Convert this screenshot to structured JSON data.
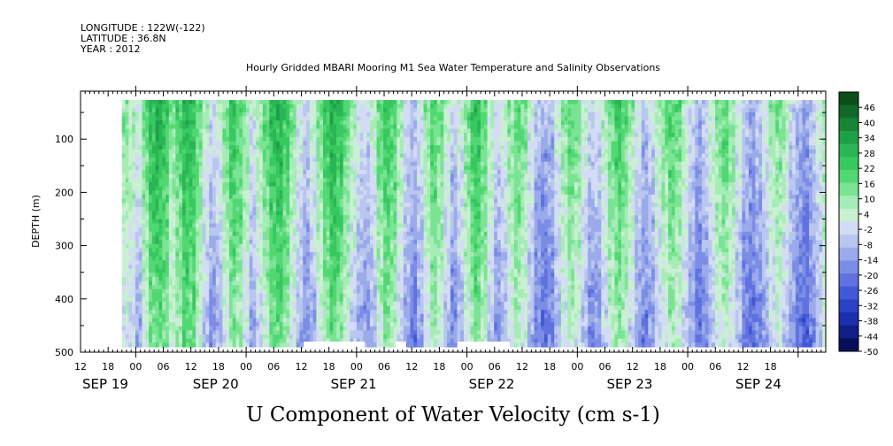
{
  "header": {
    "longitude": "LONGITUDE : 122W(-122)",
    "latitude": "LATITUDE : 36.8N",
    "year": "YEAR : 2012"
  },
  "chart_data": {
    "type": "heatmap",
    "title": "Hourly Gridded MBARI Mooring M1 Sea Water Temperature and Salinity Observations",
    "xlabel": "",
    "ylabel": "DEPTH (m)",
    "bottom_title": "U Component of Water Velocity (cm s-1)",
    "x_range_hours": [
      0,
      162
    ],
    "x_time_origin": "SEP 19 12",
    "data_start_hour": 9,
    "ylim": [
      500,
      10
    ],
    "y_ticks": [
      100,
      200,
      300,
      400,
      500
    ],
    "x_hour_ticks": [
      "12",
      "18",
      "00",
      "06",
      "12",
      "18",
      "00",
      "06",
      "12",
      "18",
      "00",
      "06",
      "12",
      "18",
      "00",
      "06",
      "12",
      "18",
      "00",
      "06",
      "12",
      "18",
      "00",
      "06",
      "12",
      "18"
    ],
    "date_labels": [
      {
        "label": "SEP 19",
        "hour": 0
      },
      {
        "label": "SEP 20",
        "hour": 24
      },
      {
        "label": "SEP 21",
        "hour": 54
      },
      {
        "label": "SEP 22",
        "hour": 84
      },
      {
        "label": "SEP 23",
        "hour": 114
      },
      {
        "label": "SEP 24",
        "hour": 142
      }
    ],
    "colorbar": {
      "labels": [
        "46",
        "40",
        "34",
        "28",
        "22",
        "16",
        "10",
        "4",
        "-2",
        "-8",
        "-14",
        "-20",
        "-26",
        "-32",
        "-38",
        "-44",
        "-50"
      ],
      "colors": [
        "#0d4d1a",
        "#10692a",
        "#168535",
        "#1ea146",
        "#2bb555",
        "#38c860",
        "#52d873",
        "#7be394",
        "#a6ecb6",
        "#c9f0d2",
        "#d3dcf4",
        "#b9c6ef",
        "#9aaaea",
        "#7c8de6",
        "#5f72df",
        "#4258d6",
        "#2c41c6",
        "#1c2fac",
        "#101e86",
        "#070f5a"
      ],
      "min": -50,
      "max": 52
    },
    "column_profile": [
      0.2,
      0.1,
      -0.2,
      0.4,
      0.9,
      1.0,
      0.8,
      0.3,
      0.6,
      1.0,
      0.9,
      0.4,
      -0.1,
      -0.4,
      -0.2,
      0.3,
      0.8,
      0.6,
      0.2,
      -0.3,
      0.1,
      0.5,
      0.9,
      1.0,
      0.7,
      0.2,
      -0.2,
      -0.5,
      -0.2,
      0.3,
      0.7,
      1.0,
      0.8,
      0.4,
      0.0,
      -0.3,
      -0.4,
      -0.1,
      0.4,
      0.8,
      0.6,
      0.1,
      -0.4,
      -0.6,
      -0.3,
      0.2,
      0.6,
      0.4,
      -0.1,
      -0.5,
      -0.2,
      0.3,
      0.7,
      0.9,
      0.5,
      0.0,
      -0.4,
      -0.2,
      0.2,
      0.5,
      0.3,
      -0.2,
      -0.6,
      -0.8,
      -0.6,
      -0.2,
      0.2,
      0.5,
      0.3,
      -0.1,
      -0.5,
      -0.4,
      0.0,
      0.4,
      0.7,
      0.5,
      0.1,
      -0.3,
      -0.6,
      -0.4,
      0.0,
      0.3,
      0.6,
      0.4,
      0.0,
      -0.4,
      -0.7,
      -0.5,
      -0.1,
      0.3,
      0.5,
      0.2,
      -0.2,
      -0.6,
      -0.8,
      -0.6,
      -0.3,
      0.1,
      0.3,
      0.0,
      -0.4,
      -0.7,
      -0.9,
      -0.6,
      -0.2,
      0.2
    ],
    "surface_boost": 0.55,
    "missing_bottom_blocks": [
      [
        48,
        115
      ],
      [
        343,
        412
      ],
      [
        447,
        459
      ],
      [
        517,
        576
      ]
    ]
  },
  "colors": {
    "axis": "#000000",
    "background": "#ffffff"
  }
}
